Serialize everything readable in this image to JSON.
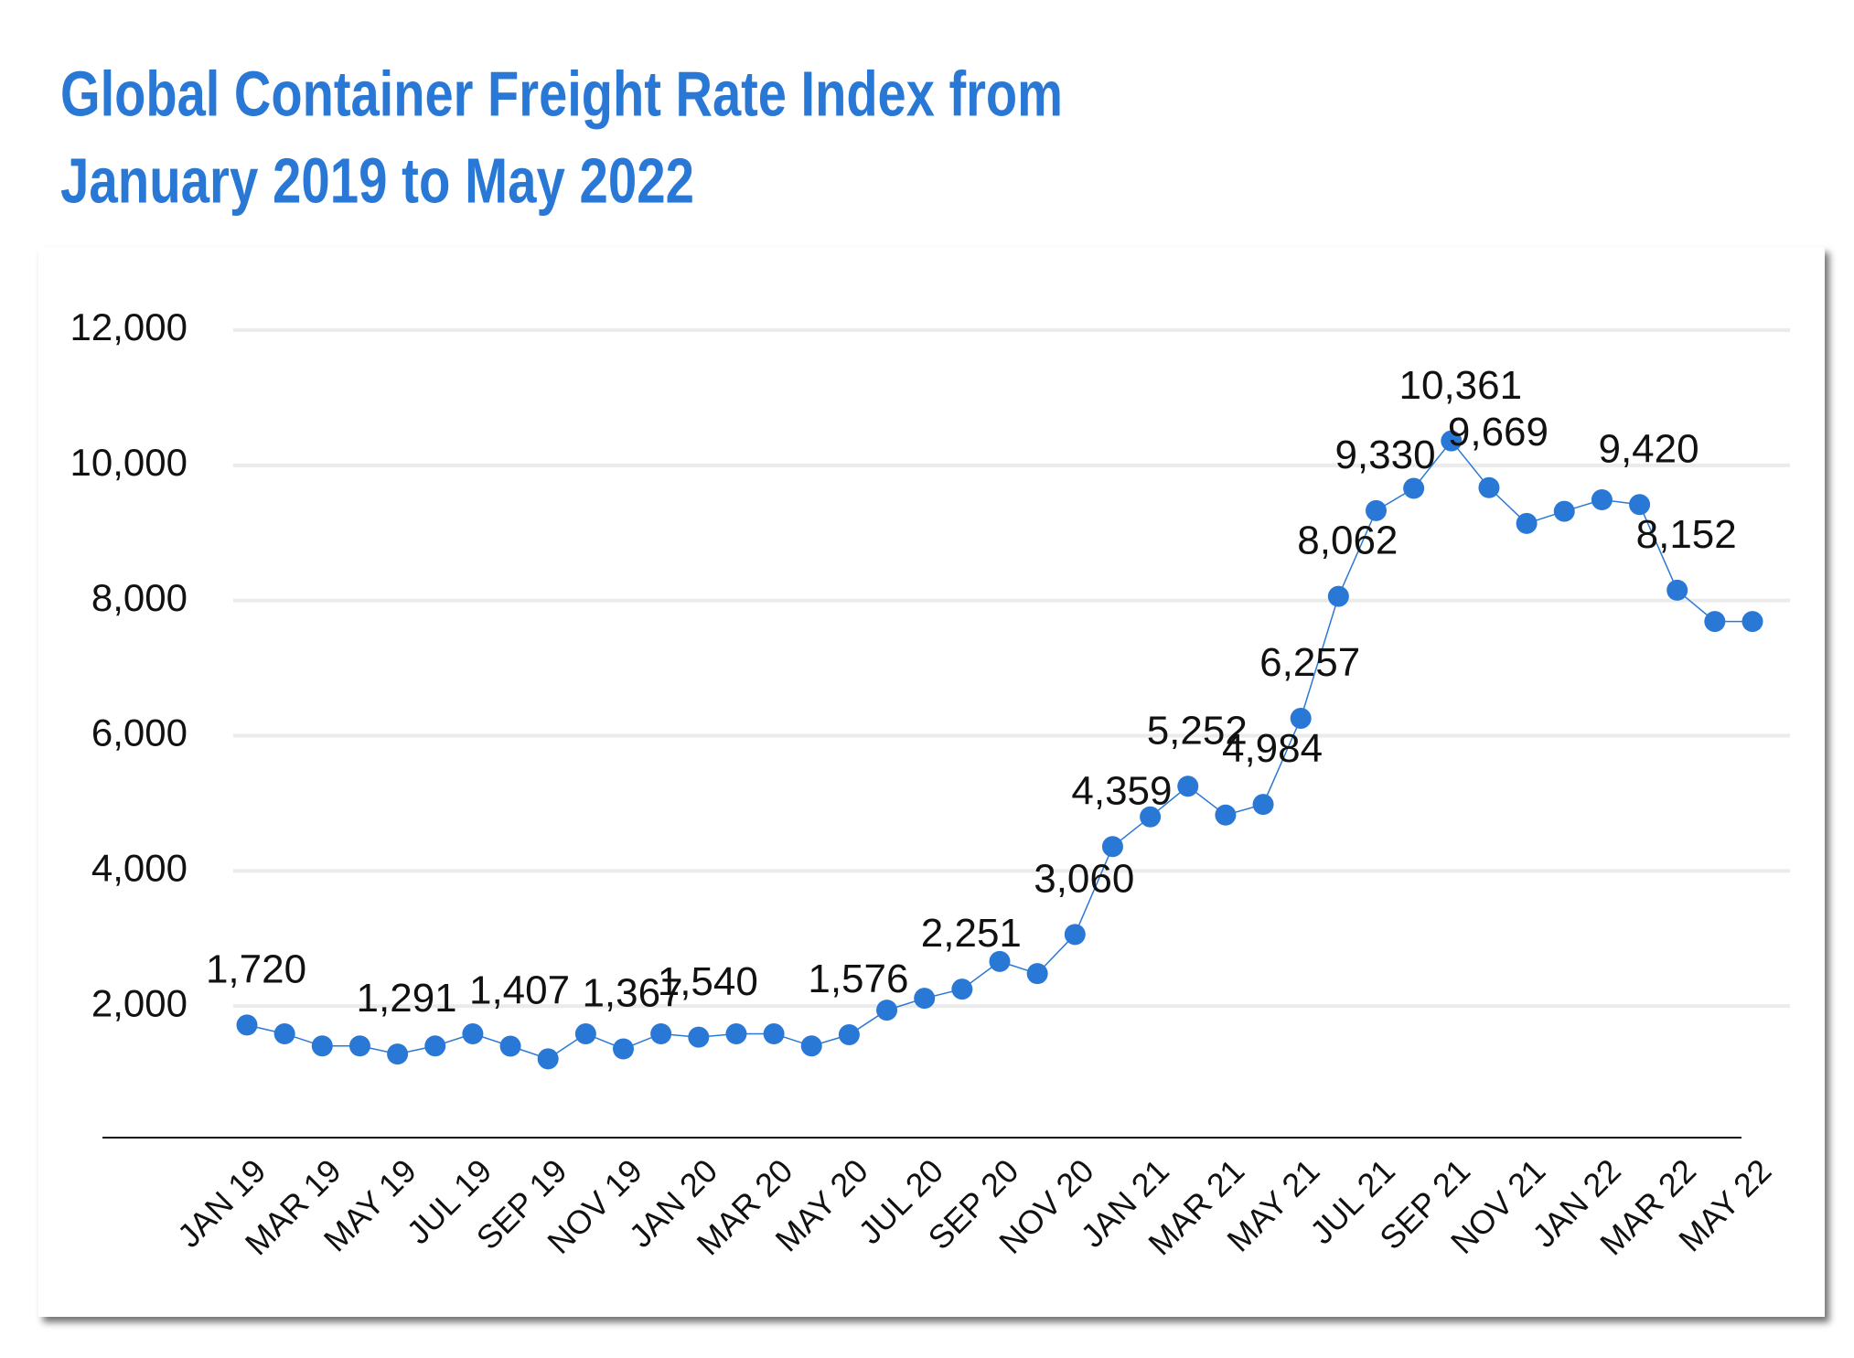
{
  "chart_data": {
    "type": "line",
    "title": [
      "Global Container Freight Rate Index from",
      "January 2019 to May 2022"
    ],
    "categories": [
      "JAN 19",
      null,
      "MAR 19",
      null,
      "MAY 19",
      null,
      "JUL 19",
      null,
      "SEP 19",
      null,
      "NOV 19",
      null,
      "JAN 20",
      null,
      "MAR 20",
      null,
      "MAY 20",
      null,
      "JUL 20",
      null,
      "SEP 20",
      null,
      "NOV 20",
      null,
      "JAN 21",
      null,
      "MAR 21",
      null,
      "MAY 21",
      null,
      "JUL 21",
      null,
      "SEP 21",
      null,
      "NOV 21",
      null,
      "JAN 22",
      null,
      "MAR 22",
      null,
      "MAY 22"
    ],
    "values": [
      1720,
      1590,
      1410,
      1410,
      1291,
      1410,
      1590,
      1407,
      1220,
      1590,
      1367,
      1590,
      1540,
      1590,
      1590,
      1410,
      1576,
      1940,
      2115,
      2251,
      2660,
      2480,
      3060,
      4359,
      4800,
      5252,
      4826,
      4984,
      6257,
      8062,
      9330,
      9660,
      10361,
      9669,
      9140,
      9320,
      9490,
      9420,
      8152,
      7690,
      7690
    ],
    "value_labels": [
      "1,720",
      null,
      null,
      null,
      "1,291",
      null,
      null,
      "1,407",
      null,
      null,
      "1,367",
      null,
      "1,540",
      null,
      null,
      null,
      "1,576",
      null,
      null,
      "2,251",
      null,
      null,
      "3,060",
      "4,359",
      null,
      "5,252",
      null,
      "4,984",
      "6,257",
      "8,062",
      "9,330",
      null,
      "10,361",
      "9,669",
      null,
      null,
      null,
      "9,420",
      "8,152",
      null,
      null
    ],
    "color": "#2a78d6",
    "ylim": [
      0,
      12000
    ],
    "yticks": [
      {
        "value": 2000,
        "label": "2,000"
      },
      {
        "value": 4000,
        "label": "4,000"
      },
      {
        "value": 6000,
        "label": "6,000"
      },
      {
        "value": 8000,
        "label": "8,000"
      },
      {
        "value": 10000,
        "label": "10,000"
      },
      {
        "value": 12000,
        "label": "12,000"
      }
    ],
    "grid": true
  }
}
